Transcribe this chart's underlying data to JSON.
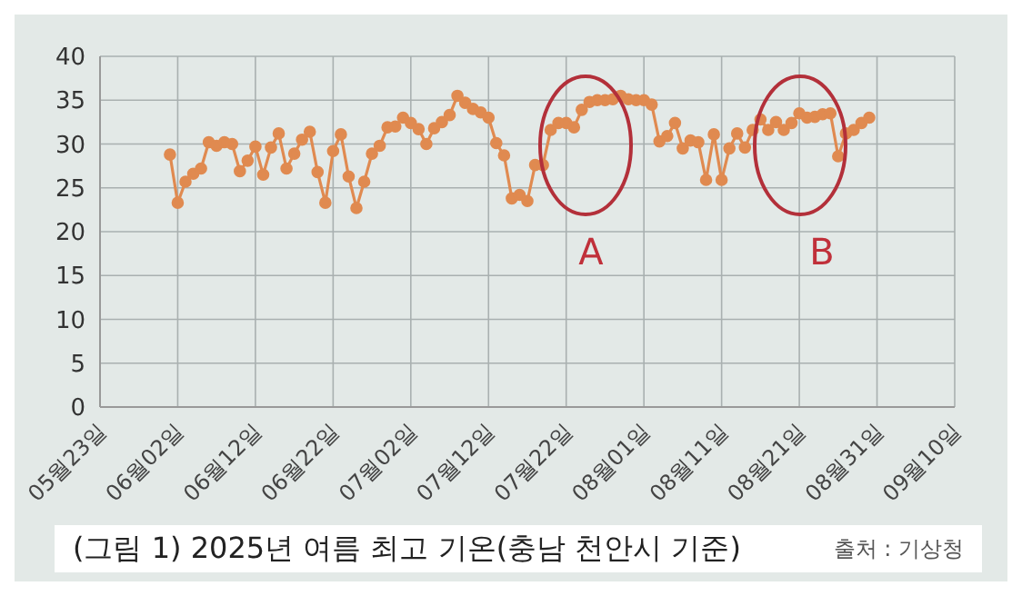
{
  "chart_data": {
    "type": "line",
    "title": "(그림 1) 2025년 여름 최고 기온(충남 천안시 기준)",
    "annotations": [
      "A",
      "B",
      "출처 : 기상청"
    ],
    "x": [
      "2025-06-01",
      "2025-06-02",
      "2025-06-03",
      "2025-06-04",
      "2025-06-05",
      "2025-06-06",
      "2025-06-07",
      "2025-06-08",
      "2025-06-09",
      "2025-06-10",
      "2025-06-11",
      "2025-06-12",
      "2025-06-13",
      "2025-06-14",
      "2025-06-15",
      "2025-06-16",
      "2025-06-17",
      "2025-06-18",
      "2025-06-19",
      "2025-06-20",
      "2025-06-21",
      "2025-06-22",
      "2025-06-23",
      "2025-06-24",
      "2025-06-25",
      "2025-06-26",
      "2025-06-27",
      "2025-06-28",
      "2025-06-29",
      "2025-06-30",
      "2025-07-01",
      "2025-07-02",
      "2025-07-03",
      "2025-07-04",
      "2025-07-05",
      "2025-07-06",
      "2025-07-07",
      "2025-07-08",
      "2025-07-09",
      "2025-07-10",
      "2025-07-11",
      "2025-07-12",
      "2025-07-13",
      "2025-07-14",
      "2025-07-15",
      "2025-07-16",
      "2025-07-17",
      "2025-07-18",
      "2025-07-19",
      "2025-07-20",
      "2025-07-21",
      "2025-07-22",
      "2025-07-23",
      "2025-07-24",
      "2025-07-25",
      "2025-07-26",
      "2025-07-27",
      "2025-07-28",
      "2025-07-29",
      "2025-07-30",
      "2025-07-31",
      "2025-08-01",
      "2025-08-02",
      "2025-08-03",
      "2025-08-04",
      "2025-08-05",
      "2025-08-06",
      "2025-08-07",
      "2025-08-08",
      "2025-08-09",
      "2025-08-10",
      "2025-08-11",
      "2025-08-12",
      "2025-08-13",
      "2025-08-14",
      "2025-08-15",
      "2025-08-16",
      "2025-08-17",
      "2025-08-18",
      "2025-08-19",
      "2025-08-20",
      "2025-08-21",
      "2025-08-22",
      "2025-08-23",
      "2025-08-24",
      "2025-08-25",
      "2025-08-26",
      "2025-08-27",
      "2025-08-28",
      "2025-08-29",
      "2025-08-30"
    ],
    "series": [
      {
        "color": "#e08a50",
        "values": [
          28.8,
          23.3,
          25.7,
          26.6,
          27.2,
          30.2,
          29.8,
          30.2,
          30.0,
          26.9,
          28.1,
          29.7,
          26.5,
          29.6,
          31.2,
          27.2,
          28.9,
          30.5,
          31.4,
          26.8,
          23.3,
          29.2,
          31.1,
          26.3,
          22.7,
          25.7,
          28.9,
          29.8,
          31.9,
          32.0,
          33.0,
          32.4,
          31.7,
          30.0,
          31.8,
          32.5,
          33.3,
          35.5,
          34.7,
          34.0,
          33.6,
          33.0,
          30.1,
          28.7,
          23.8,
          24.2,
          23.5,
          27.6,
          27.6,
          31.6,
          32.4,
          32.4,
          31.9,
          33.9,
          34.8,
          35.0,
          35.0,
          35.1,
          35.5,
          35.1,
          35.0,
          35.0,
          34.5,
          30.3,
          30.9,
          32.4,
          29.5,
          30.4,
          30.2,
          25.9,
          31.1,
          25.9,
          29.5,
          31.2,
          29.6,
          31.6,
          32.8,
          31.6,
          32.5,
          31.6,
          32.4,
          33.5,
          33.0,
          33.1,
          33.4,
          33.5,
          28.6,
          31.2,
          31.6,
          32.4,
          33.0
        ]
      }
    ],
    "xlim": [
      "2025-05-23",
      "2025-09-10"
    ],
    "xticks": [
      {
        "value": "2025-05-23",
        "label": "05월23일"
      },
      {
        "value": "2025-06-02",
        "label": "06월02일"
      },
      {
        "value": "2025-06-12",
        "label": "06월12일"
      },
      {
        "value": "2025-06-22",
        "label": "06월22일"
      },
      {
        "value": "2025-07-02",
        "label": "07월02일"
      },
      {
        "value": "2025-07-12",
        "label": "07월12일"
      },
      {
        "value": "2025-07-22",
        "label": "07월22일"
      },
      {
        "value": "2025-08-01",
        "label": "08월01일"
      },
      {
        "value": "2025-08-11",
        "label": "08월11일"
      },
      {
        "value": "2025-08-21",
        "label": "08월21일"
      },
      {
        "value": "2025-08-31",
        "label": "08월31일"
      },
      {
        "value": "2025-09-10",
        "label": "09월10일"
      }
    ],
    "ylim": [
      0,
      40
    ],
    "yticks": [
      0,
      5,
      10,
      15,
      20,
      25,
      30,
      35,
      40
    ],
    "grid": true,
    "marker": "circle",
    "line_style": "solid",
    "legend": false
  }
}
